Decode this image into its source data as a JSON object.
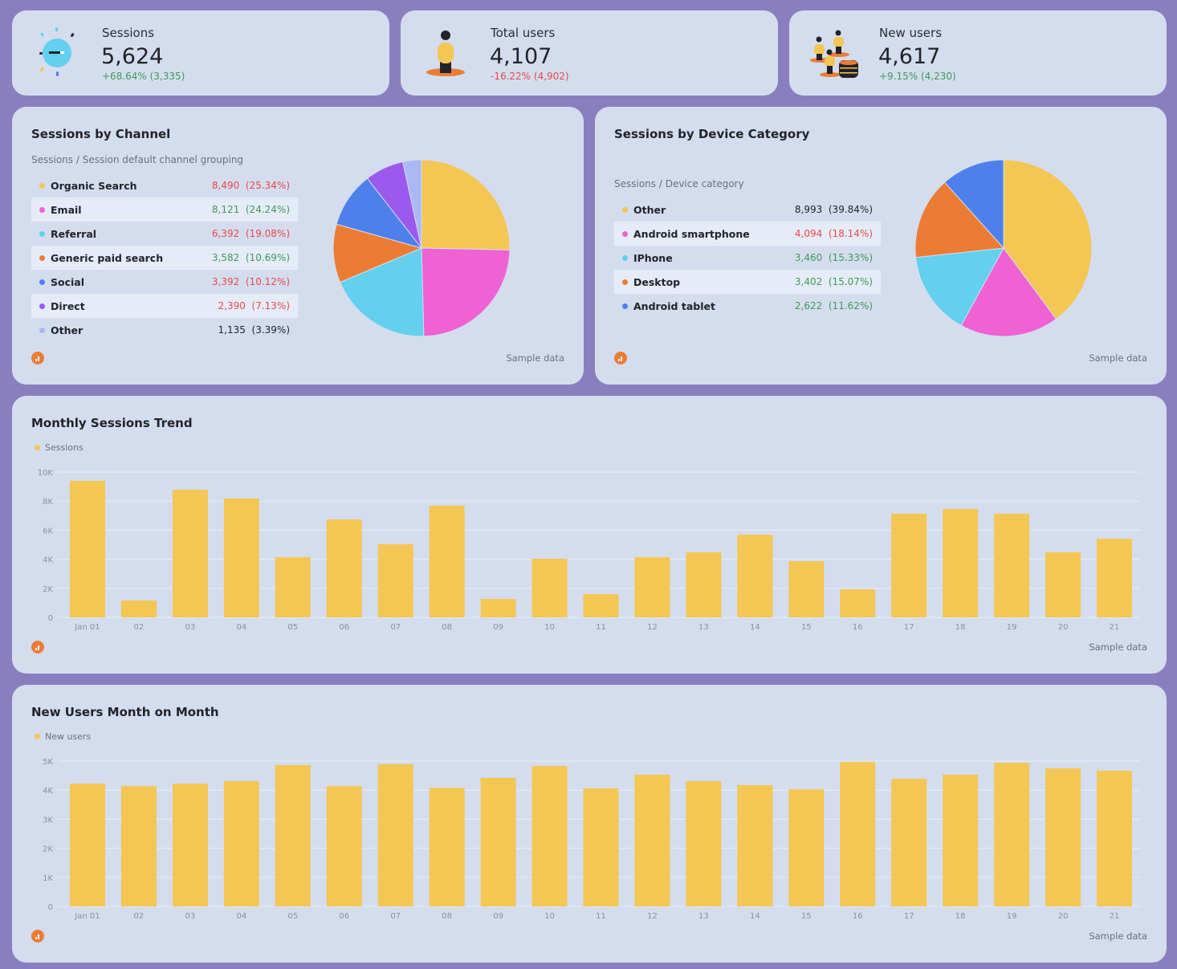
{
  "colors": {
    "yellow": "#f4c654",
    "pink": "#ee62d4",
    "cyan": "#62d0ee",
    "orange": "#ec7c34",
    "blue": "#4e80ec",
    "purple": "#9b59ee",
    "lavender": "#aab8f4",
    "green": "#3f9a57",
    "red": "#e84a4a"
  },
  "kpis": [
    {
      "label": "Sessions",
      "value": "5,624",
      "delta": "+68.64% (3,335)",
      "trend": "up",
      "icon": "lightbulb-icon"
    },
    {
      "label": "Total users",
      "value": "4,107",
      "delta": "-16.22% (4,902)",
      "trend": "down",
      "icon": "person-icon"
    },
    {
      "label": "New users",
      "value": "4,617",
      "delta": "+9.15% (4,230)",
      "trend": "up",
      "icon": "users-coins-icon"
    }
  ],
  "channel": {
    "title": "Sessions by Channel",
    "subtitle": "Sessions / Session default channel grouping",
    "footer": "Sample data",
    "items": [
      {
        "name": "Organic Search",
        "value": "8,490",
        "pct": "(25.34%)",
        "share": 25.34,
        "color": "#f4c654",
        "tone": "red"
      },
      {
        "name": "Email",
        "value": "8,121",
        "pct": "(24.24%)",
        "share": 24.24,
        "color": "#ee62d4",
        "tone": "green"
      },
      {
        "name": "Referral",
        "value": "6,392",
        "pct": "(19.08%)",
        "share": 19.08,
        "color": "#62d0ee",
        "tone": "red"
      },
      {
        "name": "Generic paid search",
        "value": "3,582",
        "pct": "(10.69%)",
        "share": 10.69,
        "color": "#ec7c34",
        "tone": "green"
      },
      {
        "name": "Social",
        "value": "3,392",
        "pct": "(10.12%)",
        "share": 10.12,
        "color": "#4e80ec",
        "tone": "red"
      },
      {
        "name": "Direct",
        "value": "2,390",
        "pct": "(7.13%)",
        "share": 7.13,
        "color": "#9b59ee",
        "tone": "red"
      },
      {
        "name": "Other",
        "value": "1,135",
        "pct": "(3.39%)",
        "share": 3.39,
        "color": "#aab8f4",
        "tone": "black"
      }
    ]
  },
  "device": {
    "title": "Sessions by Device Category",
    "subtitle": "Sessions / Device category",
    "footer": "Sample data",
    "items": [
      {
        "name": "Other",
        "value": "8,993",
        "pct": "(39.84%)",
        "share": 39.84,
        "color": "#f4c654",
        "tone": "black"
      },
      {
        "name": "Android smartphone",
        "value": "4,094",
        "pct": "(18.14%)",
        "share": 18.14,
        "color": "#ee62d4",
        "tone": "red"
      },
      {
        "name": "IPhone",
        "value": "3,460",
        "pct": "(15.33%)",
        "share": 15.33,
        "color": "#62d0ee",
        "tone": "green"
      },
      {
        "name": "Desktop",
        "value": "3,402",
        "pct": "(15.07%)",
        "share": 15.07,
        "color": "#ec7c34",
        "tone": "green"
      },
      {
        "name": "Android tablet",
        "value": "2,622",
        "pct": "(11.62%)",
        "share": 11.62,
        "color": "#4e80ec",
        "tone": "green"
      }
    ]
  },
  "chart_data": [
    {
      "type": "bar",
      "title": "Monthly Sessions Trend",
      "series": [
        {
          "name": "Sessions",
          "color": "#f4c654",
          "values": [
            9400,
            1160,
            8780,
            8180,
            4140,
            6740,
            5030,
            7680,
            1270,
            4030,
            1600,
            4140,
            4480,
            5690,
            3870,
            1930,
            7130,
            7460,
            7130,
            4480,
            5410
          ]
        }
      ],
      "categories": [
        "Jan 01",
        "02",
        "03",
        "04",
        "05",
        "06",
        "07",
        "08",
        "09",
        "10",
        "11",
        "12",
        "13",
        "14",
        "15",
        "16",
        "17",
        "18",
        "19",
        "20",
        "21"
      ],
      "ylim": [
        0,
        10000
      ],
      "yticks": [
        0,
        2000,
        4000,
        6000,
        8000,
        10000
      ],
      "ytick_labels": [
        "0",
        "2K",
        "4K",
        "6K",
        "8K",
        "10K"
      ],
      "grid": true,
      "legend": "top-left",
      "footer": "Sample data"
    },
    {
      "type": "bar",
      "title": "New Users Month on Month",
      "series": [
        {
          "name": "New users",
          "color": "#f4c654",
          "values": [
            4220,
            4140,
            4220,
            4310,
            4860,
            4140,
            4890,
            4080,
            4420,
            4830,
            4060,
            4530,
            4310,
            4170,
            4030,
            4970,
            4390,
            4530,
            4940,
            4750,
            4670
          ]
        }
      ],
      "categories": [
        "Jan 01",
        "02",
        "03",
        "04",
        "05",
        "06",
        "07",
        "08",
        "09",
        "10",
        "11",
        "12",
        "13",
        "14",
        "15",
        "16",
        "17",
        "18",
        "19",
        "20",
        "21"
      ],
      "ylim": [
        0,
        5000
      ],
      "yticks": [
        0,
        1000,
        2000,
        3000,
        4000,
        5000
      ],
      "ytick_labels": [
        "0",
        "1K",
        "2K",
        "3K",
        "4K",
        "5K"
      ],
      "grid": true,
      "legend": "top-left",
      "footer": "Sample data"
    }
  ]
}
